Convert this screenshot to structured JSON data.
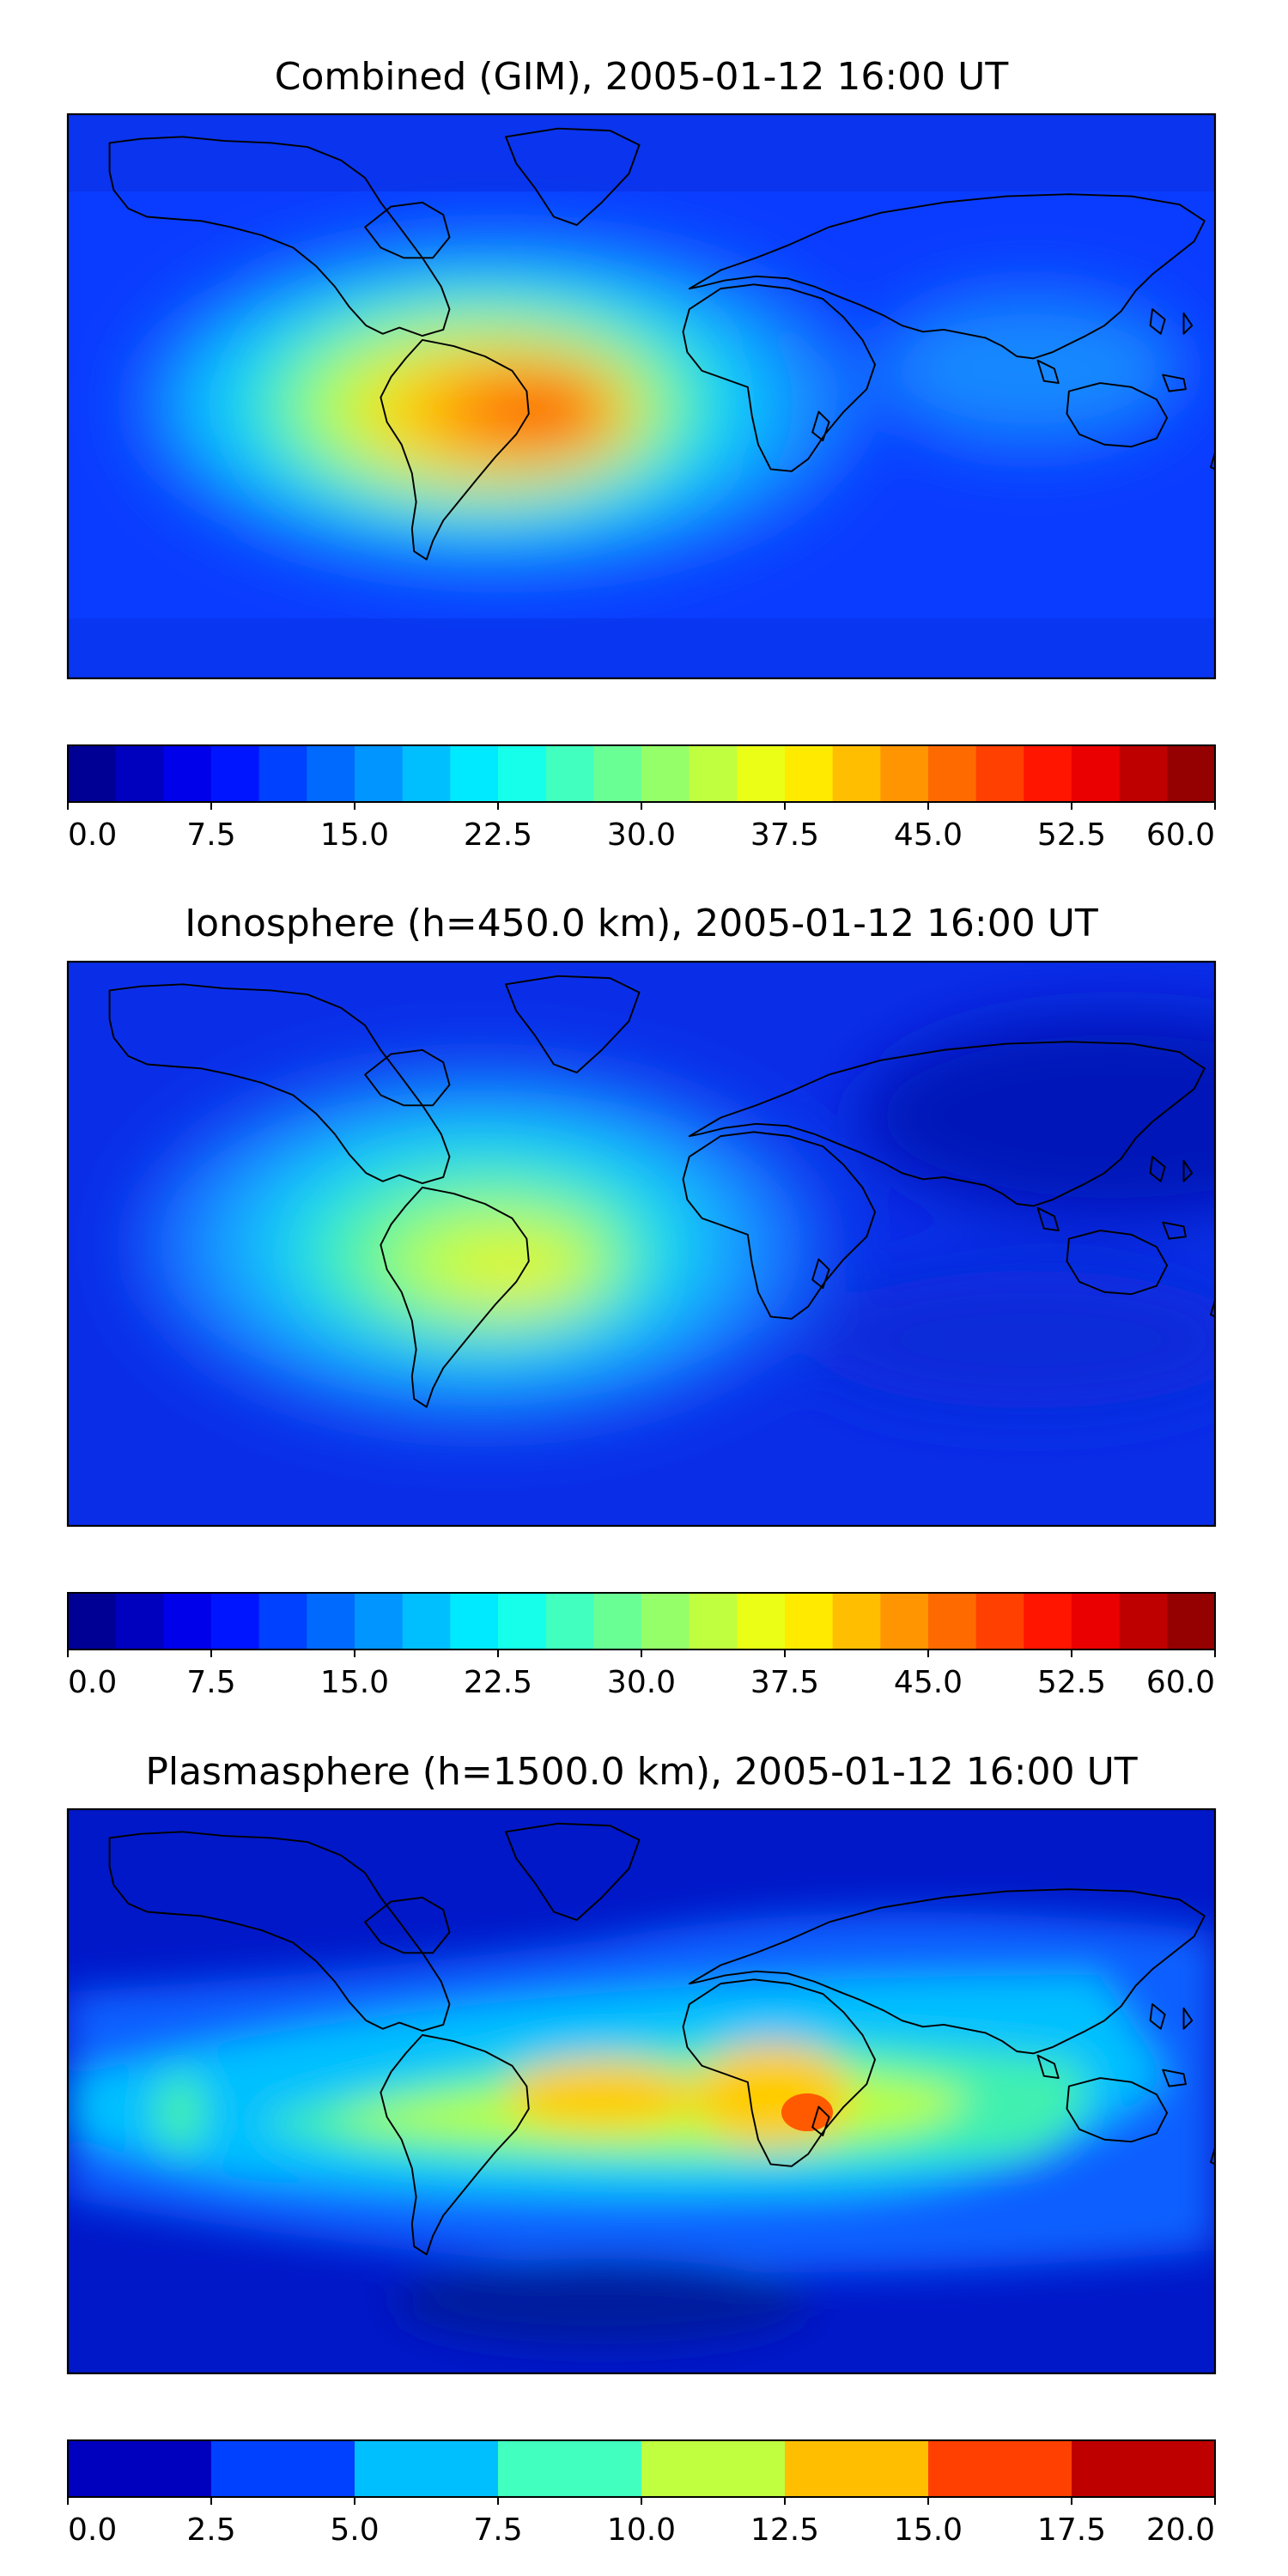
{
  "chart_data": [
    {
      "type": "heatmap",
      "title": "Combined (GIM), 2005-01-12 16:00 UT",
      "colorbar": {
        "min": 0.0,
        "max": 60.0,
        "levels": 24,
        "colormap": "jet",
        "tick_labels": [
          "0.0",
          "7.5",
          "15.0",
          "22.5",
          "30.0",
          "37.5",
          "45.0",
          "52.5",
          "60.0"
        ]
      },
      "max_region": "South America / South Atlantic (~50)"
    },
    {
      "type": "heatmap",
      "title": "Ionosphere  (h=450.0 km), 2005-01-12 16:00 UT",
      "colorbar": {
        "min": 0.0,
        "max": 60.0,
        "levels": 24,
        "colormap": "jet",
        "tick_labels": [
          "0.0",
          "7.5",
          "15.0",
          "22.5",
          "30.0",
          "37.5",
          "45.0",
          "52.5",
          "60.0"
        ]
      },
      "max_region": "South America (~38)"
    },
    {
      "type": "heatmap",
      "title": "Plasmasphere (h=1500.0 km), 2005-01-12 16:00 UT",
      "colorbar": {
        "min": 0.0,
        "max": 20.0,
        "levels": 8,
        "colormap": "jet",
        "tick_labels": [
          "0.0",
          "2.5",
          "5.0",
          "7.5",
          "10.0",
          "12.5",
          "15.0",
          "17.5",
          "20.0"
        ]
      },
      "max_region": "East Africa (~15)"
    }
  ]
}
